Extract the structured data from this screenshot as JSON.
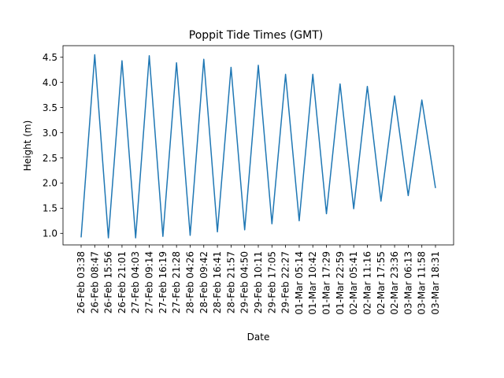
{
  "chart_data": {
    "type": "line",
    "title": "Poppit Tide Times (GMT)",
    "xlabel": "Date",
    "ylabel": "Height (m)",
    "ylim": [
      0.77,
      4.73
    ],
    "yticks": [
      "1.0",
      "1.5",
      "2.0",
      "2.5",
      "3.0",
      "3.5",
      "4.0",
      "4.5"
    ],
    "grid": false,
    "line_color": "#1f77b4",
    "categories": [
      "26-Feb 03:38",
      "26-Feb 08:47",
      "26-Feb 15:56",
      "26-Feb 21:01",
      "27-Feb 04:03",
      "27-Feb 09:14",
      "27-Feb 16:19",
      "27-Feb 21:28",
      "28-Feb 04:26",
      "28-Feb 09:42",
      "28-Feb 16:41",
      "28-Feb 21:57",
      "29-Feb 04:50",
      "29-Feb 10:11",
      "29-Feb 17:05",
      "29-Feb 22:27",
      "01-Mar 05:14",
      "01-Mar 10:42",
      "01-Mar 17:29",
      "01-Mar 22:59",
      "02-Mar 05:41",
      "02-Mar 11:16",
      "02-Mar 17:55",
      "02-Mar 23:36",
      "03-Mar 06:13",
      "03-Mar 11:58",
      "03-Mar 18:31"
    ],
    "values": [
      0.92,
      4.55,
      0.91,
      4.43,
      0.91,
      4.53,
      0.94,
      4.39,
      0.96,
      4.46,
      1.03,
      4.3,
      1.07,
      4.34,
      1.19,
      4.16,
      1.25,
      4.16,
      1.39,
      3.97,
      1.49,
      3.92,
      1.64,
      3.73,
      1.75,
      3.65,
      1.9
    ]
  }
}
